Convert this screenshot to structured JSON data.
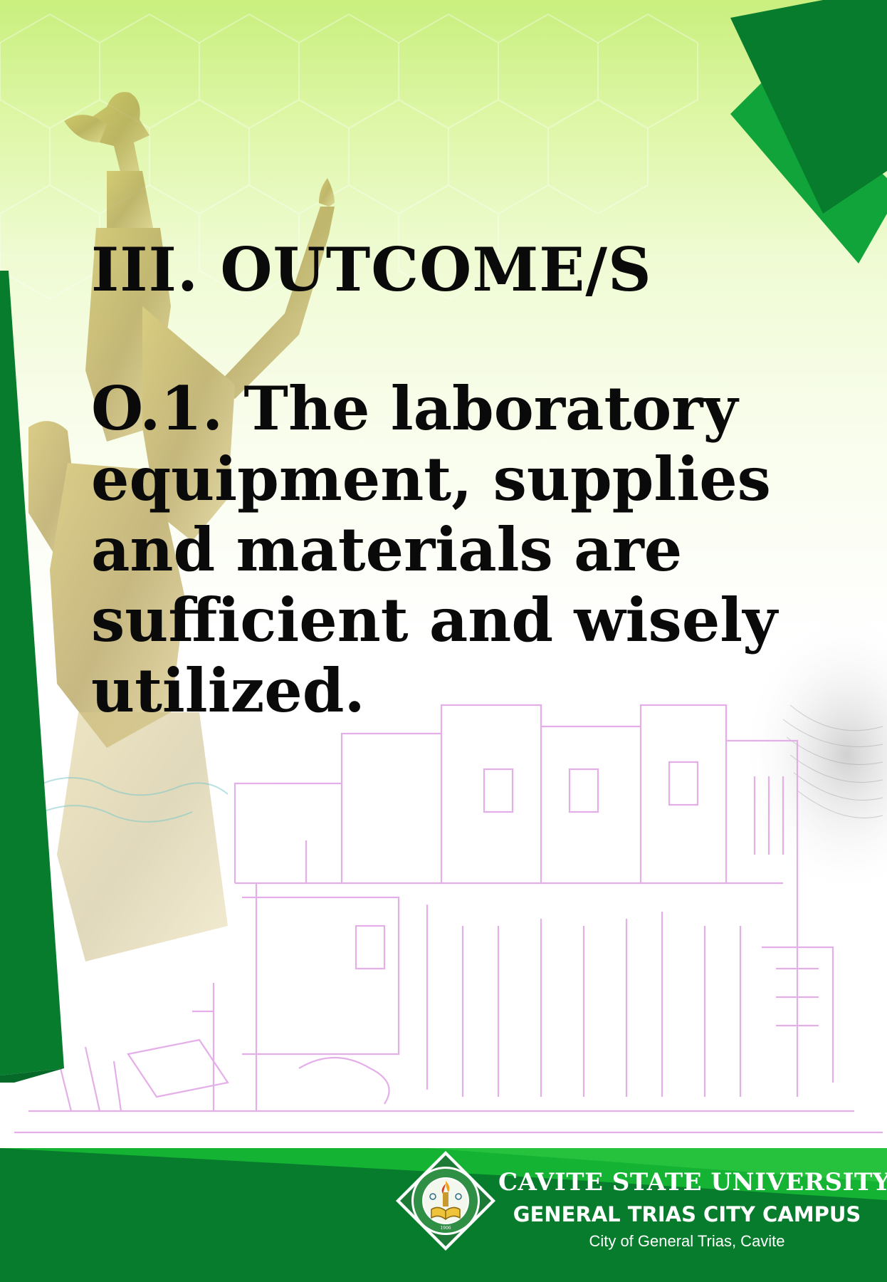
{
  "slide": {
    "heading": "III. OUTCOME/S",
    "outcome_text": "O.1. The laboratory equipment, supplies and materials are sufficient and wisely utilized."
  },
  "footer": {
    "university": "CAVITE STATE UNIVERSITY",
    "campus": "GENERAL TRIAS CITY CAMPUS",
    "location": "City of General Trias, Cavite"
  },
  "seal": {
    "icon": "university-seal-icon",
    "ring_text": "CAVITE STATE UNIVERSITY · CAVITE · PHILIPPINES",
    "year": "1906"
  },
  "colors": {
    "dark_green": "#087c2d",
    "mid_green": "#0c9a2a",
    "light_green_bg": "#c9ef7e",
    "outline_pink": "#e2a6e6",
    "text": "#0a0a0a"
  }
}
